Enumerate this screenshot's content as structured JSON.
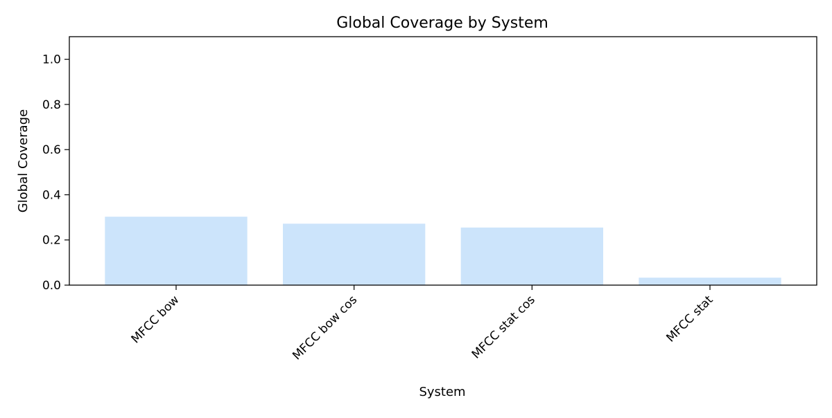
{
  "chart_data": {
    "type": "bar",
    "title": "Global Coverage by System",
    "xlabel": "System",
    "ylabel": "Global Coverage",
    "categories": [
      "MFCC bow",
      "MFCC bow cos",
      "MFCC stat cos",
      "MFCC stat"
    ],
    "values": [
      0.303,
      0.272,
      0.255,
      0.033
    ],
    "ylim": [
      0,
      1.1
    ],
    "yticks": [
      0.0,
      0.2,
      0.4,
      0.6,
      0.8,
      1.0
    ],
    "ytick_labels": [
      "0.0",
      "0.2",
      "0.4",
      "0.6",
      "0.8",
      "1.0"
    ],
    "grid": false,
    "legend": "none",
    "bar_color": "#cce4fb",
    "x_tick_rotation": "45 degrees"
  }
}
